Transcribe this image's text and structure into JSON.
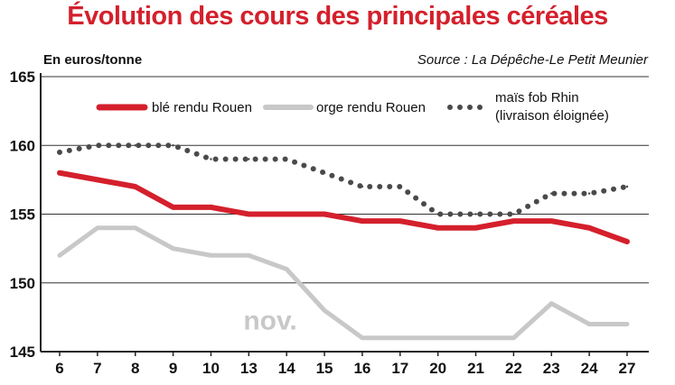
{
  "chart_data": {
    "type": "line",
    "title": "Évolution des cours des principales céréales",
    "ylabel": "En euros/tonne",
    "source": "Source : La Dépêche-Le Petit Meunier",
    "categories": [
      "6",
      "7",
      "8",
      "9",
      "10",
      "13",
      "14",
      "15",
      "16",
      "17",
      "20",
      "21",
      "22",
      "23",
      "24",
      "27"
    ],
    "ylim": [
      145,
      165
    ],
    "yticks": [
      145,
      150,
      155,
      160,
      165
    ],
    "grid": true,
    "legend_position": "top",
    "annotation": "nov.",
    "series": [
      {
        "name": "blé rendu Rouen",
        "color": "#d4202c",
        "style": "solid",
        "values": [
          158,
          157.5,
          157,
          155.5,
          155.5,
          155,
          155,
          155,
          154.5,
          154.5,
          154,
          154,
          154.5,
          154.5,
          154,
          153
        ]
      },
      {
        "name": "orge rendu Rouen",
        "color": "#c8c8c8",
        "style": "solid",
        "values": [
          152,
          154,
          154,
          152.5,
          152,
          152,
          151,
          148,
          146,
          146,
          146,
          146,
          146,
          148.5,
          147,
          147
        ]
      },
      {
        "name": "maïs fob Rhin",
        "name_line2": "(livraison éloignée)",
        "color": "#4a4a4a",
        "style": "dotted",
        "values": [
          159.5,
          160,
          160,
          160,
          159,
          159,
          159,
          158,
          157,
          157,
          155,
          155,
          155,
          156.5,
          156.5,
          157
        ]
      }
    ]
  }
}
